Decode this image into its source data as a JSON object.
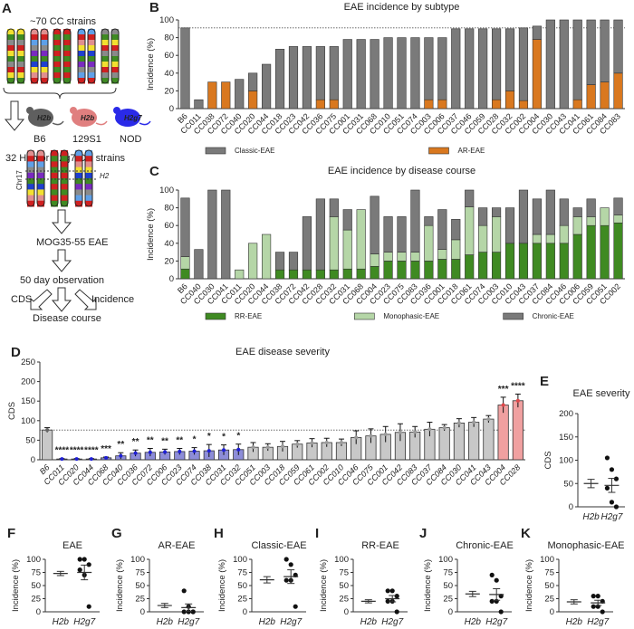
{
  "panel_letters": [
    "A",
    "B",
    "C",
    "D",
    "E",
    "F",
    "G",
    "H",
    "I",
    "J",
    "K"
  ],
  "diagram": {
    "top_label": "~70 CC strains",
    "mice": [
      {
        "name": "B6",
        "haplotype": "H2b",
        "color": "#5f5f5f"
      },
      {
        "name": "129S1",
        "haplotype": "H2b",
        "color": "#e07f7f"
      },
      {
        "name": "NOD",
        "haplotype": "H2g7",
        "color": "#2a2ae8"
      }
    ],
    "selection_label": "32 H2b or H2g7 CC strains",
    "chr_label": "Chr17",
    "locus_label": "H2",
    "immunization": "MOG35-55 EAE",
    "observation": "50 day observation",
    "outcomes": [
      "CDS",
      "Disease course",
      "Incidence"
    ]
  },
  "chart_data": [
    {
      "id": "B",
      "type": "bar",
      "stacked": true,
      "title": "EAE incidence by subtype",
      "ylabel": "Incidence (%)",
      "ylim": [
        0,
        100
      ],
      "yticks": [
        0,
        20,
        40,
        60,
        80,
        100
      ],
      "reference_line": 91,
      "legend_position": "bottom",
      "categories": [
        "B6",
        "CC011",
        "CC038",
        "CC072",
        "CC040",
        "CC020",
        "CC044",
        "CC018",
        "CC023",
        "CC042",
        "CC036",
        "CC075",
        "CC001",
        "CC031",
        "CC068",
        "CC010",
        "CC051",
        "CC074",
        "CC003",
        "CC006",
        "CC037",
        "CC046",
        "CC059",
        "CC028",
        "CC032",
        "CC002",
        "CC004",
        "CC030",
        "CC043",
        "CC041",
        "CC061",
        "CC084",
        "CC083"
      ],
      "series": [
        {
          "name": "AR-EAE",
          "color": "#d9781f",
          "values": [
            0,
            0,
            30,
            30,
            0,
            20,
            0,
            0,
            0,
            0,
            10,
            10,
            0,
            0,
            0,
            0,
            0,
            0,
            10,
            10,
            0,
            0,
            0,
            10,
            20,
            9,
            78,
            0,
            0,
            10,
            27,
            30,
            40
          ]
        },
        {
          "name": "Classic-EAE",
          "color": "#7a7a7a",
          "values": [
            91,
            10,
            0,
            0,
            33,
            20,
            50,
            67,
            70,
            70,
            60,
            60,
            78,
            78,
            78,
            80,
            80,
            80,
            70,
            70,
            90,
            90,
            90,
            80,
            70,
            82,
            15,
            100,
            100,
            90,
            73,
            70,
            60
          ]
        }
      ],
      "legend_order": [
        "Classic-EAE",
        "AR-EAE"
      ]
    },
    {
      "id": "C",
      "type": "bar",
      "stacked": true,
      "title": "EAE incidence by disease course",
      "ylabel": "Incidence (%)",
      "ylim": [
        0,
        100
      ],
      "yticks": [
        0,
        20,
        40,
        60,
        80,
        100
      ],
      "legend_position": "bottom",
      "categories": [
        "B6",
        "CC040",
        "CC030",
        "CC041",
        "CC011",
        "CC020",
        "CC044",
        "CC038",
        "CC072",
        "CC042",
        "CC028",
        "CC032",
        "CC031",
        "CC068",
        "CC004",
        "CC023",
        "CC075",
        "CC083",
        "CC036",
        "CC001",
        "CC018",
        "CC061",
        "CC074",
        "CC003",
        "CC010",
        "CC043",
        "CC037",
        "CC084",
        "CC046",
        "CC006",
        "CC059",
        "CC051",
        "CC002"
      ],
      "series": [
        {
          "name": "RR-EAE",
          "color": "#3f8a22",
          "values": [
            11,
            0,
            0,
            0,
            0,
            0,
            0,
            10,
            10,
            10,
            10,
            10,
            11,
            11,
            14,
            20,
            20,
            20,
            20,
            22,
            22,
            27,
            30,
            30,
            40,
            40,
            40,
            40,
            40,
            50,
            60,
            60,
            63
          ]
        },
        {
          "name": "Monophasic-EAE",
          "color": "#b5d6a7",
          "values": [
            14,
            0,
            0,
            0,
            10,
            40,
            50,
            0,
            0,
            0,
            0,
            60,
            44,
            67,
            14,
            10,
            10,
            10,
            40,
            11,
            22,
            54,
            30,
            40,
            0,
            0,
            10,
            10,
            20,
            20,
            10,
            20,
            9
          ]
        },
        {
          "name": "Chronic-EAE",
          "color": "#7a7a7a",
          "values": [
            66,
            33,
            100,
            100,
            0,
            0,
            0,
            20,
            20,
            60,
            80,
            20,
            23,
            0,
            65,
            40,
            40,
            70,
            10,
            45,
            23,
            19,
            20,
            10,
            40,
            60,
            40,
            50,
            30,
            10,
            20,
            0,
            19
          ]
        }
      ]
    },
    {
      "id": "D",
      "type": "bar",
      "title": "EAE disease severity",
      "ylabel": "CDS",
      "ylim": [
        0,
        250
      ],
      "yticks": [
        0,
        50,
        100,
        150,
        200,
        250
      ],
      "reference_line": 76,
      "categories": [
        "B6",
        "CC011",
        "CC020",
        "CC044",
        "CC068",
        "CC040",
        "CC036",
        "CC072",
        "CC006",
        "CC023",
        "CC074",
        "CC038",
        "CC031",
        "CC032",
        "CC051",
        "CC003",
        "CC018",
        "CC059",
        "CC061",
        "CC002",
        "CC010",
        "CC046",
        "CC075",
        "CC001",
        "CC042",
        "CC083",
        "CC037",
        "CC084",
        "CC030",
        "CC041",
        "CC043",
        "CC004",
        "CC028"
      ],
      "means": [
        76,
        2,
        2,
        2,
        5,
        10,
        17,
        19,
        20,
        21,
        22,
        23,
        25,
        26,
        32,
        32,
        34,
        40,
        43,
        44,
        44,
        57,
        61,
        65,
        70,
        71,
        78,
        82,
        94,
        96,
        104,
        140,
        151
      ],
      "sem": [
        6,
        1,
        1,
        1,
        2,
        8,
        8,
        10,
        7,
        8,
        9,
        16,
        13,
        14,
        12,
        9,
        13,
        9,
        11,
        11,
        9,
        17,
        18,
        20,
        22,
        14,
        18,
        8,
        11,
        12,
        9,
        20,
        17
      ],
      "groups": [
        "ref",
        "low",
        "low",
        "low",
        "low",
        "low",
        "low",
        "low",
        "low",
        "low",
        "low",
        "low",
        "low",
        "low",
        "ns",
        "ns",
        "ns",
        "ns",
        "ns",
        "ns",
        "ns",
        "ns",
        "ns",
        "ns",
        "ns",
        "ns",
        "ns",
        "ns",
        "ns",
        "ns",
        "ns",
        "high",
        "high"
      ],
      "group_colors": {
        "ref": "#666666",
        "low": "#1f1fd6",
        "ns": "#9a9a9a",
        "high": "#e0474a"
      },
      "significance": [
        "",
        "****",
        "****",
        "****",
        "***",
        "**",
        "**",
        "**",
        "**",
        "**",
        "*",
        "*",
        "*",
        "*",
        "",
        "",
        "",
        "",
        "",
        "",
        "",
        "",
        "",
        "",
        "",
        "",
        "",
        "",
        "",
        "",
        "",
        "***",
        "****"
      ]
    },
    {
      "id": "E",
      "type": "scatter",
      "title": "EAE severity",
      "ylabel": "CDS",
      "ylim": [
        0,
        200
      ],
      "yticks": [
        0,
        50,
        100,
        150,
        200
      ],
      "categories": [
        "H2b",
        "H2g7"
      ],
      "means": [
        50,
        46
      ],
      "sem": [
        9,
        15
      ],
      "points_h2g7": [
        105,
        80,
        60,
        40,
        10,
        0
      ]
    },
    {
      "id": "F",
      "type": "scatter",
      "title": "EAE",
      "ylabel": "Incidence (%)",
      "ylim": [
        0,
        100
      ],
      "yticks": [
        0,
        25,
        50,
        75,
        100
      ],
      "categories": [
        "H2b",
        "H2g7"
      ],
      "means": [
        73,
        75
      ],
      "sem": [
        4,
        14
      ],
      "points_h2g7": [
        100,
        100,
        90,
        80,
        70,
        10
      ]
    },
    {
      "id": "G",
      "type": "scatter",
      "title": "AR-EAE",
      "ylabel": "Incidence (%)",
      "ylim": [
        0,
        100
      ],
      "yticks": [
        0,
        25,
        50,
        75,
        100
      ],
      "categories": [
        "H2b",
        "H2g7"
      ],
      "means": [
        12,
        8
      ],
      "sem": [
        4,
        7
      ],
      "points_h2g7": [
        40,
        10,
        0,
        0,
        0,
        0
      ]
    },
    {
      "id": "H",
      "type": "scatter",
      "title": "Classic-EAE",
      "ylabel": "Incidence (%)",
      "ylim": [
        0,
        100
      ],
      "yticks": [
        0,
        25,
        50,
        75,
        100
      ],
      "categories": [
        "H2b",
        "H2g7"
      ],
      "means": [
        61,
        67
      ],
      "sem": [
        6,
        13
      ],
      "points_h2g7": [
        100,
        90,
        70,
        60,
        60,
        10
      ]
    },
    {
      "id": "I",
      "type": "scatter",
      "title": "RR-EAE",
      "ylabel": "Incidence (%)",
      "ylim": [
        0,
        100
      ],
      "yticks": [
        0,
        25,
        50,
        75,
        100
      ],
      "categories": [
        "H2b",
        "H2g7"
      ],
      "means": [
        20,
        25
      ],
      "sem": [
        3,
        6
      ],
      "points_h2g7": [
        40,
        40,
        30,
        20,
        20,
        0
      ]
    },
    {
      "id": "J",
      "type": "scatter",
      "title": "Chronic-EAE",
      "ylabel": "Incidence (%)",
      "ylim": [
        0,
        100
      ],
      "yticks": [
        0,
        25,
        50,
        75,
        100
      ],
      "categories": [
        "H2b",
        "H2g7"
      ],
      "means": [
        34,
        33
      ],
      "sem": [
        5,
        11
      ],
      "points_h2g7": [
        70,
        60,
        30,
        20,
        20,
        0
      ]
    },
    {
      "id": "K",
      "type": "scatter",
      "title": "Monophasic-EAE",
      "ylabel": "Incidence (%)",
      "ylim": [
        0,
        100
      ],
      "yticks": [
        0,
        25,
        50,
        75,
        100
      ],
      "categories": [
        "H2b",
        "H2g7"
      ],
      "means": [
        19,
        17
      ],
      "sem": [
        4,
        5
      ],
      "points_h2g7": [
        30,
        30,
        20,
        10,
        10,
        0
      ]
    }
  ]
}
